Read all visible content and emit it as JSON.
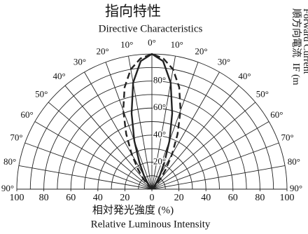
{
  "chart_data": {
    "type": "polar",
    "title": "指向特性",
    "subtitle": "Directive Characteristics",
    "xlabel": "相対発光強度 (%)",
    "xlabel_en": "Relative Luminous Intensity",
    "side_label": "順方向電流",
    "side_label_symbol": "IF (m",
    "side_label_en": "Forward Current",
    "rlim": [
      0,
      100
    ],
    "rgrid": [
      10,
      20,
      30,
      40,
      50,
      60,
      70,
      80,
      90,
      100
    ],
    "rticks": [
      {
        "value": 20,
        "label": "20°"
      },
      {
        "value": 40,
        "label": "40°"
      },
      {
        "value": 60,
        "label": "60°"
      },
      {
        "value": 80,
        "label": "80°"
      }
    ],
    "xticks": [
      {
        "value": -100,
        "label": "100"
      },
      {
        "value": -80,
        "label": "80"
      },
      {
        "value": -60,
        "label": "60"
      },
      {
        "value": -40,
        "label": "40"
      },
      {
        "value": -20,
        "label": "20"
      },
      0,
      20,
      40,
      60,
      80,
      100
    ],
    "angle_ticks": [
      {
        "value": -90,
        "label": "90°"
      },
      {
        "value": -80,
        "label": "80°"
      },
      {
        "value": -70,
        "label": "70°"
      },
      {
        "value": -60,
        "label": "60°"
      },
      {
        "value": -50,
        "label": "50°"
      },
      {
        "value": -40,
        "label": "40°"
      },
      {
        "value": -30,
        "label": "30°"
      },
      {
        "value": -20,
        "label": "20°"
      },
      {
        "value": -10,
        "label": "10°"
      },
      {
        "value": 0,
        "label": "0°"
      },
      {
        "value": 10,
        "label": "10°"
      },
      {
        "value": 20,
        "label": "20°"
      },
      {
        "value": 30,
        "label": "30°"
      },
      {
        "value": 40,
        "label": "40°"
      },
      {
        "value": 50,
        "label": "50°"
      },
      {
        "value": 60,
        "label": "60°"
      },
      {
        "value": 70,
        "label": "70°"
      },
      {
        "value": 80,
        "label": "80°"
      },
      {
        "value": 90,
        "label": "90°"
      }
    ],
    "theta": [
      -60,
      -50,
      -40,
      -35,
      -30,
      -25,
      -20,
      -15,
      -10,
      -5,
      0,
      5,
      10,
      15,
      20,
      25,
      30,
      35,
      40,
      50,
      60
    ],
    "series": [
      {
        "color": "#222222",
        "dash": false,
        "values": [
          0,
          0,
          3,
          6,
          12,
          22,
          38,
          58,
          80,
          95,
          100,
          95,
          80,
          58,
          38,
          22,
          12,
          6,
          3,
          0,
          0
        ]
      },
      {
        "color": "#222222",
        "dash": true,
        "values": [
          0,
          2,
          10,
          18,
          30,
          45,
          62,
          78,
          90,
          97,
          100,
          97,
          90,
          78,
          62,
          45,
          30,
          18,
          10,
          2,
          0
        ]
      }
    ]
  }
}
